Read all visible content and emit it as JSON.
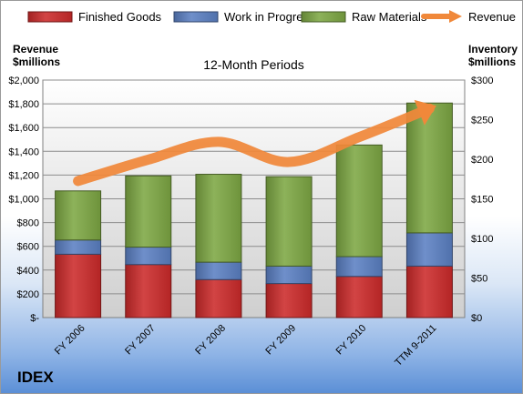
{
  "chart_data": {
    "type": "bar",
    "stacked": true,
    "title": "12-Month Periods",
    "company": "IDEX",
    "y_left_label": [
      "Revenue",
      "$millions"
    ],
    "y_right_label": [
      "Inventory",
      "$millions"
    ],
    "categories": [
      "FY 2006",
      "FY 2007",
      "FY 2008",
      "FY 2009",
      "FY 2010",
      "TTM 9-2011"
    ],
    "series": [
      {
        "name": "Finished Goods",
        "axis": "right",
        "color": "#cc2a2a",
        "values": [
          80,
          67,
          48,
          43,
          52,
          65
        ]
      },
      {
        "name": "Work in Progress",
        "axis": "right",
        "color": "#5b80c3",
        "values": [
          18,
          22,
          22,
          22,
          25,
          42
        ]
      },
      {
        "name": "Raw Materials",
        "axis": "right",
        "color": "#7da743",
        "values": [
          62,
          90,
          111,
          113,
          141,
          164
        ]
      }
    ],
    "line_series": {
      "name": "Revenue",
      "axis": "left",
      "color": "#f0883a",
      "values": [
        1150,
        1330,
        1480,
        1310,
        1520,
        1760
      ]
    },
    "y_left": {
      "min": 0,
      "max": 2000,
      "step": 200,
      "tick_labels": [
        "$-",
        "$200",
        "$400",
        "$600",
        "$800",
        "$1,000",
        "$1,200",
        "$1,400",
        "$1,600",
        "$1,800",
        "$2,000"
      ]
    },
    "y_right": {
      "min": 0,
      "max": 300,
      "step": 50,
      "tick_labels": [
        "$0",
        "$50",
        "$100",
        "$150",
        "$200",
        "$250",
        "$300"
      ]
    },
    "legend": {
      "position": "top",
      "entries": [
        "Finished Goods",
        "Work in Progress",
        "Raw Materials",
        "Revenue"
      ]
    },
    "grid": true
  }
}
